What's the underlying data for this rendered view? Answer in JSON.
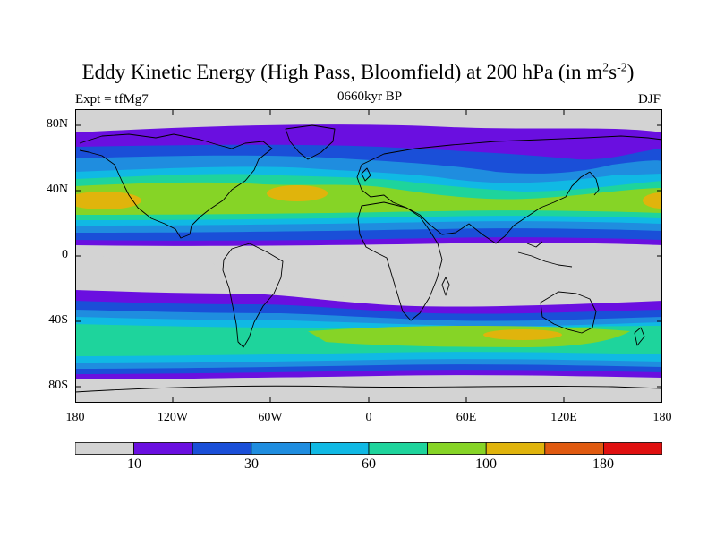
{
  "title": {
    "main": "Eddy Kinetic Energy (High Pass, Bloomfield) at 200 hPa (in m",
    "sup1": "2",
    "mid": "s",
    "sup2": "-2",
    "close": ")"
  },
  "subtitle_left": "Expt = tfMg7",
  "subtitle_center": "0660kyr BP",
  "subtitle_right": "DJF",
  "y_ticks": [
    "80N",
    "40N",
    "0",
    "40S",
    "80S"
  ],
  "x_ticks": [
    "180",
    "120W",
    "60W",
    "0",
    "60E",
    "120E",
    "180"
  ],
  "colorbar": {
    "colors": [
      "#d3d3d3",
      "#6a0fe0",
      "#1a4fd8",
      "#1f8ddf",
      "#10b9e4",
      "#1ed49c",
      "#86d426",
      "#e0b40c",
      "#e05a10",
      "#e01010"
    ],
    "labels": [
      "10",
      "30",
      "60",
      "100",
      "180"
    ]
  },
  "colors": {
    "land_outline": "#000000",
    "low": "#d3d3d3"
  }
}
